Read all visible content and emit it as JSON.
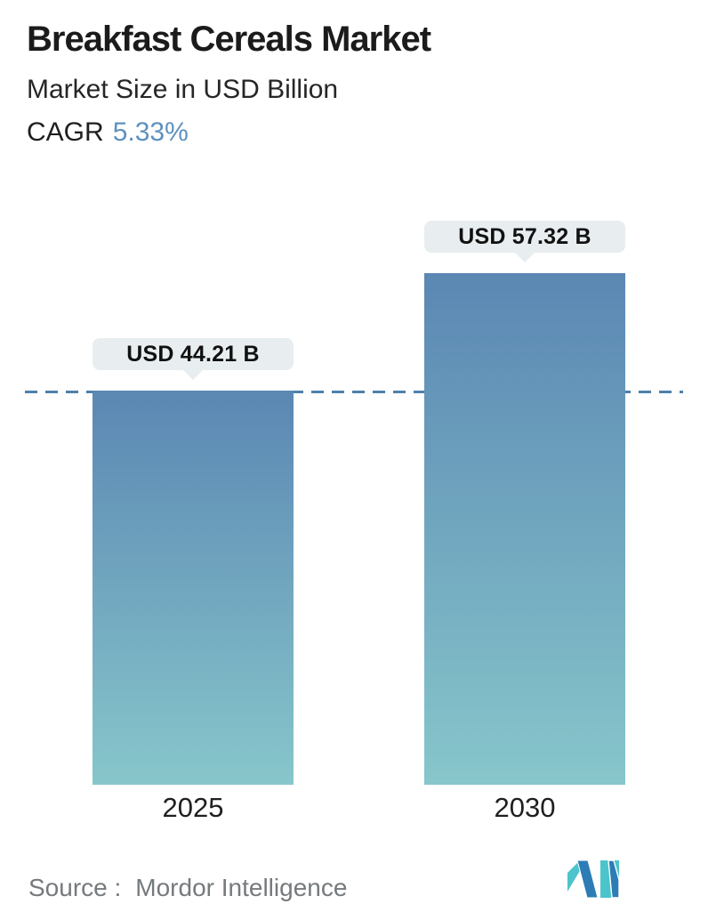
{
  "header": {
    "title": "Breakfast Cereals Market",
    "subtitle": "Market Size in USD Billion",
    "cagr_label": "CAGR",
    "cagr_value": "5.33%"
  },
  "chart_data": {
    "type": "bar",
    "categories": [
      "2025",
      "2030"
    ],
    "values": [
      44.21,
      57.32
    ],
    "value_labels": [
      "USD 44.21 B",
      "USD 57.32 B"
    ],
    "unit": "USD Billion",
    "title": "Breakfast Cereals Market",
    "subtitle": "Market Size in USD Billion",
    "cagr": "5.33%",
    "reference_line_value": 44.21,
    "reference_line_style": "dashed",
    "ylim": [
      0,
      62
    ],
    "grid": false,
    "legend": false,
    "axis_lines": false,
    "colors": {
      "bar_gradient_top": "#5b87b3",
      "bar_gradient_bottom": "#87c6cb",
      "dashed_line": "#4d80ab",
      "cagr_accent": "#5e90bf",
      "label_pill_bg": "#e8eef0",
      "label_text": "#111111"
    }
  },
  "footer": {
    "source_label": "Source :",
    "source_value": "Mordor Intelligence",
    "logo": {
      "name": "mordor-intelligence-logo",
      "teal": "#4cc4cb",
      "blue": "#2d7cb5"
    }
  }
}
